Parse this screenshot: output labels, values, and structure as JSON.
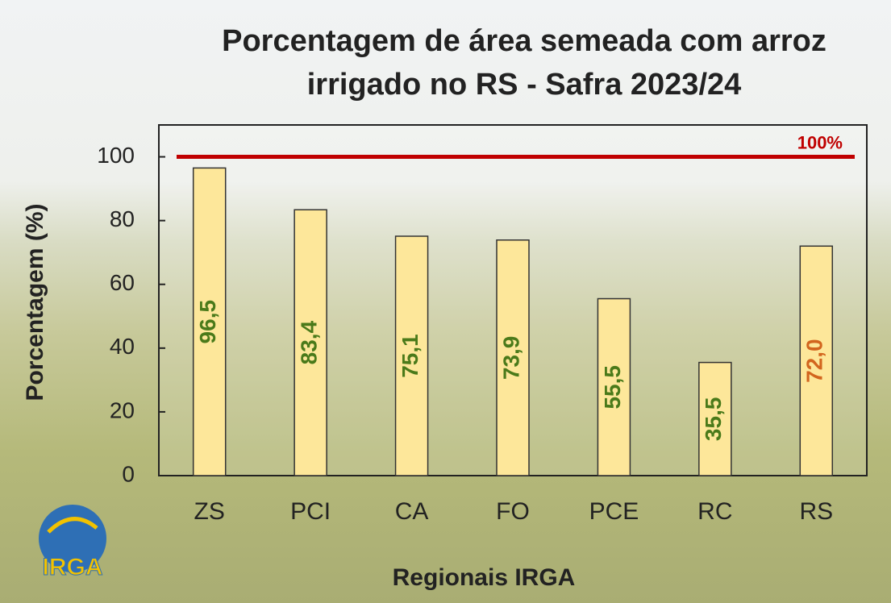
{
  "chart_data": {
    "type": "bar",
    "title": "Porcentagem de área semeada com arroz irrigado no RS - Safra 2023/24",
    "x_label": "Regionais IRGA",
    "y_label": "Porcentagem (%)",
    "categories": [
      "ZS",
      "PCI",
      "CA",
      "FO",
      "PCE",
      "RC",
      "RS"
    ],
    "values": [
      96.5,
      83.4,
      75.1,
      73.9,
      55.5,
      35.5,
      72.0
    ],
    "value_labels": [
      "96,5",
      "83,4",
      "75,1",
      "73,9",
      "55,5",
      "35,5",
      "72,0"
    ],
    "value_label_colors": [
      "#4a7a1a",
      "#4a7a1a",
      "#4a7a1a",
      "#4a7a1a",
      "#4a7a1a",
      "#4a7a1a",
      "#d2651e"
    ],
    "color": "#fde79a",
    "ylim": [
      0,
      110
    ],
    "yticks": [
      0,
      20,
      40,
      60,
      80,
      100
    ],
    "reference_line": {
      "value": 100,
      "label": "100%",
      "color": "#c00000"
    },
    "logo": "IRGA"
  }
}
